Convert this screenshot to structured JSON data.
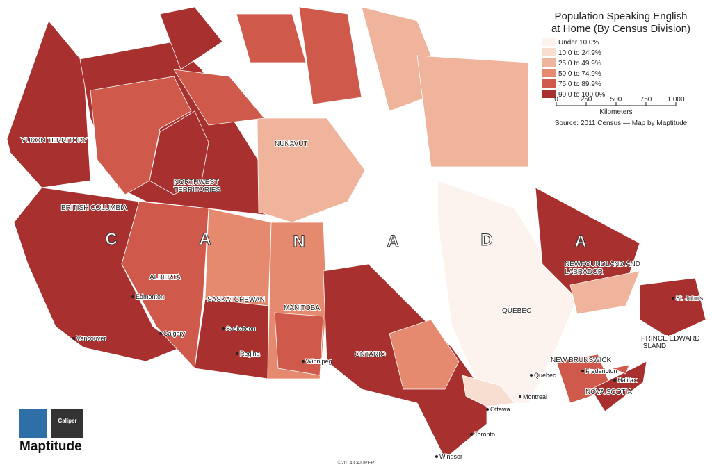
{
  "title": [
    "Population Speaking English",
    "at Home (By Census Division)"
  ],
  "legend": [
    {
      "label": "Under 10.0%",
      "color": "#fdf3ee"
    },
    {
      "label": "10.0 to 24.9%",
      "color": "#f8ddd1"
    },
    {
      "label": "25.0 to 49.9%",
      "color": "#f0b39b"
    },
    {
      "label": "50.0 to 74.9%",
      "color": "#e58a6f"
    },
    {
      "label": "75.0 to 89.9%",
      "color": "#cf5a4b"
    },
    {
      "label": "90.0 to 100.0%",
      "color": "#a8302f"
    }
  ],
  "scale": {
    "labels": [
      "0",
      "250",
      "500",
      "750",
      "1,000"
    ],
    "unit": "Kilometers"
  },
  "source": "Source: 2011 Census — Map by Maptitude",
  "letters": [
    "C",
    "A",
    "N",
    "A",
    "D",
    "A"
  ],
  "regions": [
    "YUKON TERRITORY",
    "NORTHWEST TERRITORIES",
    "NUNAVUT",
    "BRITISH COLUMBIA",
    "ALBERTA",
    "SASKATCHEWAN",
    "MANITOBA",
    "ONTARIO",
    "QUEBEC",
    "NEWFOUNDLAND AND LABRADOR",
    "NEW BRUNSWICK",
    "PRINCE EDWARD ISLAND",
    "NOVA SCOTIA"
  ],
  "cities": [
    "Vancouver",
    "Edmonton",
    "Calgary",
    "Saskatoon",
    "Regina",
    "Winnipeg",
    "Toronto",
    "Ottawa",
    "Montreal",
    "Quebec",
    "Fredericton",
    "Halifax",
    "St. John's",
    "Windsor"
  ],
  "logo": {
    "name": "Maptitude",
    "brand": "Caliper"
  },
  "copyright": "©2014 CALIPER"
}
